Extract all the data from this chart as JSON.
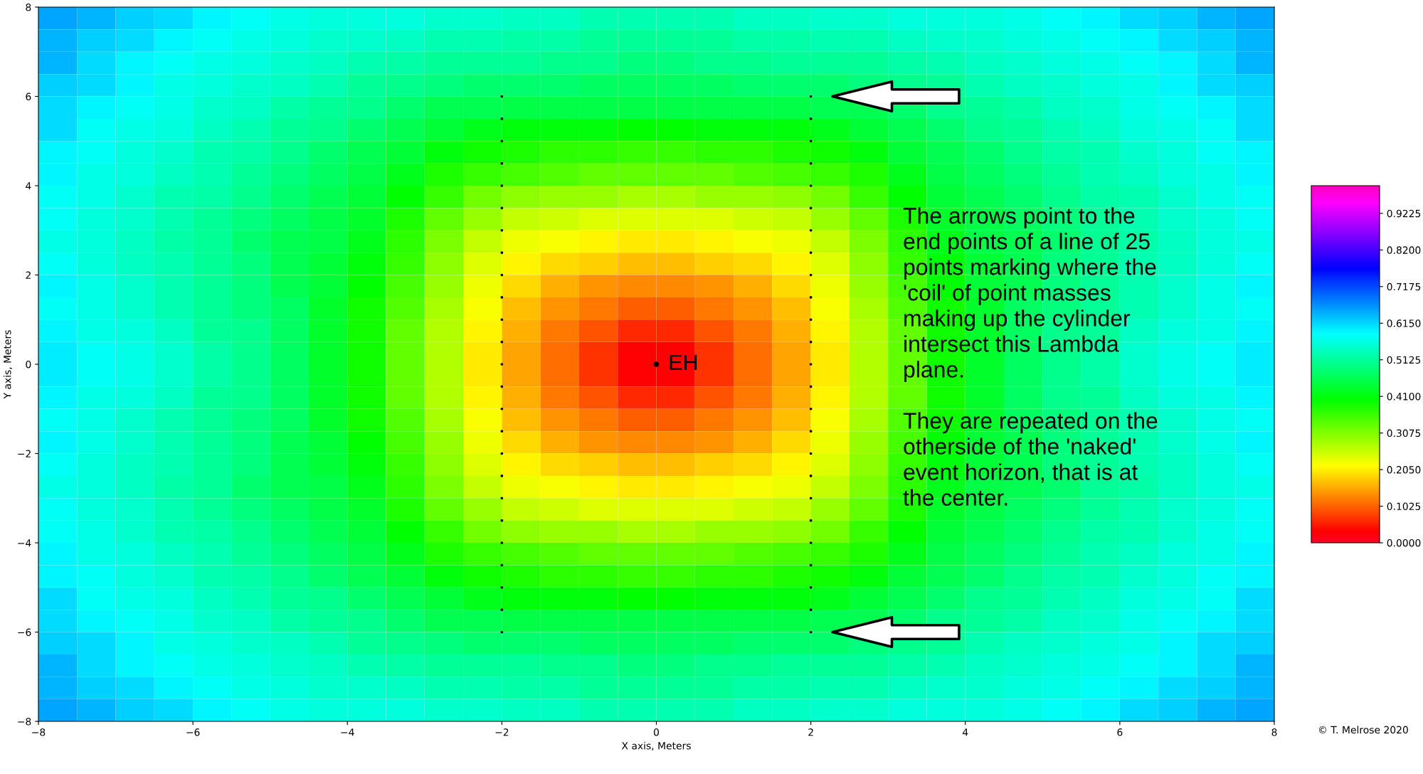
{
  "chart_data": [
    {
      "type": "heatmap",
      "categories": [
        null,
        null,
        null,
        null,
        null,
        null,
        null,
        null,
        null,
        null,
        null,
        null,
        null,
        null,
        null,
        null,
        null,
        null,
        null,
        null,
        null,
        null,
        null,
        null,
        null,
        null,
        null,
        null,
        null,
        null,
        null,
        null
      ],
      "y_categories": [
        null,
        null,
        null,
        null,
        null,
        null,
        null,
        null,
        null,
        null,
        null,
        null,
        null,
        null,
        null,
        null,
        null,
        null,
        null,
        null,
        null,
        null,
        null,
        null,
        null,
        null,
        null,
        null,
        null,
        null,
        null,
        null
      ],
      "clim": [
        0,
        1.0
      ],
      "cticks": [
        {
          "value": 0,
          "label": "0.0000"
        },
        0.1025,
        {
          "value": 0.205,
          "label": "0.2050"
        },
        0.3075,
        {
          "value": 0.41,
          "label": "0.4100"
        },
        0.5125,
        {
          "value": 0.615,
          "label": "0.6150"
        },
        0.7175,
        {
          "value": 0.82,
          "label": "0.8200"
        },
        0.9225
      ],
      "cells": [
        [
          0.65,
          0.64,
          0.62,
          0.61,
          0.59,
          0.58,
          0.57,
          0.56,
          0.56,
          0.56,
          0.55,
          0.55,
          0.54,
          0.54,
          0.53,
          0.53,
          0.53,
          0.53,
          0.54,
          0.54,
          0.55,
          0.55,
          0.56,
          0.56,
          0.56,
          0.57,
          0.58,
          0.59,
          0.61,
          0.62,
          0.64,
          0.65
        ],
        [
          0.64,
          0.62,
          0.61,
          0.59,
          0.58,
          0.57,
          0.56,
          0.55,
          0.55,
          0.54,
          0.53,
          0.53,
          0.52,
          0.52,
          0.51,
          0.51,
          0.51,
          0.51,
          0.52,
          0.52,
          0.53,
          0.53,
          0.54,
          0.55,
          0.55,
          0.56,
          0.57,
          0.58,
          0.59,
          0.61,
          0.62,
          0.64
        ],
        [
          0.64,
          0.61,
          0.59,
          0.58,
          0.57,
          0.56,
          0.55,
          0.54,
          0.53,
          0.52,
          0.51,
          0.51,
          0.51,
          0.5,
          0.5,
          0.49,
          0.49,
          0.5,
          0.5,
          0.51,
          0.51,
          0.51,
          0.52,
          0.53,
          0.54,
          0.55,
          0.56,
          0.57,
          0.58,
          0.59,
          0.61,
          0.64
        ],
        [
          0.62,
          0.61,
          0.59,
          0.57,
          0.56,
          0.55,
          0.54,
          0.53,
          0.51,
          0.5,
          0.49,
          0.48,
          0.48,
          0.48,
          0.47,
          0.47,
          0.47,
          0.47,
          0.48,
          0.48,
          0.48,
          0.49,
          0.5,
          0.51,
          0.53,
          0.54,
          0.55,
          0.56,
          0.57,
          0.59,
          0.61,
          0.62
        ],
        [
          0.61,
          0.59,
          0.58,
          0.57,
          0.55,
          0.54,
          0.52,
          0.51,
          0.5,
          0.48,
          0.46,
          0.46,
          0.45,
          0.45,
          0.45,
          0.45,
          0.45,
          0.45,
          0.45,
          0.45,
          0.46,
          0.46,
          0.48,
          0.5,
          0.51,
          0.52,
          0.54,
          0.55,
          0.57,
          0.58,
          0.59,
          0.61
        ],
        [
          0.61,
          0.58,
          0.57,
          0.56,
          0.54,
          0.53,
          0.51,
          0.5,
          0.48,
          0.46,
          0.44,
          0.42,
          0.41,
          0.41,
          0.41,
          0.4,
          0.4,
          0.41,
          0.41,
          0.41,
          0.42,
          0.44,
          0.46,
          0.48,
          0.5,
          0.51,
          0.53,
          0.54,
          0.56,
          0.57,
          0.58,
          0.61
        ],
        [
          0.59,
          0.58,
          0.56,
          0.55,
          0.53,
          0.52,
          0.5,
          0.48,
          0.46,
          0.44,
          0.41,
          0.39,
          0.38,
          0.37,
          0.37,
          0.36,
          0.36,
          0.37,
          0.37,
          0.38,
          0.39,
          0.41,
          0.44,
          0.46,
          0.48,
          0.5,
          0.52,
          0.53,
          0.55,
          0.56,
          0.58,
          0.59
        ],
        [
          0.59,
          0.57,
          0.56,
          0.54,
          0.53,
          0.51,
          0.49,
          0.47,
          0.45,
          0.42,
          0.38,
          0.36,
          0.35,
          0.34,
          0.33,
          0.33,
          0.33,
          0.33,
          0.34,
          0.35,
          0.36,
          0.38,
          0.42,
          0.45,
          0.47,
          0.49,
          0.51,
          0.53,
          0.54,
          0.56,
          0.57,
          0.59
        ],
        [
          0.58,
          0.57,
          0.55,
          0.53,
          0.52,
          0.5,
          0.48,
          0.46,
          0.44,
          0.4,
          0.36,
          0.32,
          0.3,
          0.29,
          0.29,
          0.28,
          0.28,
          0.29,
          0.29,
          0.3,
          0.32,
          0.36,
          0.4,
          0.44,
          0.46,
          0.48,
          0.5,
          0.52,
          0.53,
          0.55,
          0.57,
          0.58
        ],
        [
          0.58,
          0.56,
          0.55,
          0.53,
          0.51,
          0.49,
          0.47,
          0.45,
          0.43,
          0.38,
          0.33,
          0.29,
          0.26,
          0.25,
          0.24,
          0.24,
          0.24,
          0.24,
          0.25,
          0.26,
          0.29,
          0.33,
          0.38,
          0.43,
          0.45,
          0.47,
          0.49,
          0.51,
          0.53,
          0.55,
          0.56,
          0.58
        ],
        [
          0.57,
          0.56,
          0.54,
          0.52,
          0.51,
          0.48,
          0.46,
          0.45,
          0.42,
          0.37,
          0.31,
          0.26,
          0.23,
          0.22,
          0.21,
          0.2,
          0.2,
          0.21,
          0.22,
          0.23,
          0.26,
          0.31,
          0.37,
          0.42,
          0.45,
          0.46,
          0.48,
          0.51,
          0.52,
          0.54,
          0.56,
          0.57
        ],
        [
          0.58,
          0.56,
          0.54,
          0.53,
          0.51,
          0.49,
          0.46,
          0.44,
          0.41,
          0.36,
          0.3,
          0.24,
          0.21,
          0.19,
          0.18,
          0.17,
          0.17,
          0.18,
          0.19,
          0.21,
          0.24,
          0.3,
          0.36,
          0.41,
          0.44,
          0.46,
          0.49,
          0.51,
          0.53,
          0.54,
          0.56,
          0.58
        ],
        [
          0.59,
          0.57,
          0.55,
          0.53,
          0.51,
          0.49,
          0.46,
          0.44,
          0.4,
          0.35,
          0.29,
          0.23,
          0.19,
          0.16,
          0.14,
          0.13,
          0.13,
          0.14,
          0.16,
          0.19,
          0.23,
          0.29,
          0.35,
          0.4,
          0.44,
          0.46,
          0.49,
          0.51,
          0.53,
          0.55,
          0.57,
          0.59
        ],
        [
          0.58,
          0.57,
          0.55,
          0.53,
          0.51,
          0.49,
          0.47,
          0.43,
          0.39,
          0.34,
          0.28,
          0.22,
          0.17,
          0.14,
          0.12,
          0.1,
          0.1,
          0.12,
          0.14,
          0.17,
          0.22,
          0.28,
          0.34,
          0.39,
          0.43,
          0.47,
          0.49,
          0.51,
          0.53,
          0.55,
          0.57,
          0.58
        ],
        [
          0.59,
          0.57,
          0.56,
          0.54,
          0.51,
          0.5,
          0.47,
          0.43,
          0.39,
          0.33,
          0.27,
          0.21,
          0.16,
          0.12,
          0.09,
          0.06,
          0.06,
          0.09,
          0.12,
          0.16,
          0.21,
          0.27,
          0.33,
          0.39,
          0.43,
          0.47,
          0.5,
          0.51,
          0.54,
          0.56,
          0.57,
          0.59
        ],
        [
          0.6,
          0.58,
          0.57,
          0.55,
          0.52,
          0.5,
          0.47,
          0.43,
          0.39,
          0.33,
          0.27,
          0.2,
          0.15,
          0.11,
          0.07,
          0.03,
          0.03,
          0.07,
          0.11,
          0.15,
          0.2,
          0.27,
          0.33,
          0.39,
          0.43,
          0.47,
          0.5,
          0.52,
          0.55,
          0.57,
          0.58,
          0.6
        ],
        [
          0.6,
          0.58,
          0.57,
          0.55,
          0.52,
          0.5,
          0.47,
          0.43,
          0.39,
          0.33,
          0.27,
          0.2,
          0.15,
          0.11,
          0.07,
          0.03,
          0.03,
          0.07,
          0.11,
          0.15,
          0.2,
          0.27,
          0.33,
          0.39,
          0.43,
          0.47,
          0.5,
          0.52,
          0.55,
          0.57,
          0.58,
          0.6
        ],
        [
          0.59,
          0.57,
          0.56,
          0.54,
          0.51,
          0.5,
          0.47,
          0.43,
          0.39,
          0.33,
          0.27,
          0.21,
          0.16,
          0.12,
          0.09,
          0.06,
          0.06,
          0.09,
          0.12,
          0.16,
          0.21,
          0.27,
          0.33,
          0.39,
          0.43,
          0.47,
          0.5,
          0.51,
          0.54,
          0.56,
          0.57,
          0.59
        ],
        [
          0.58,
          0.57,
          0.55,
          0.53,
          0.51,
          0.49,
          0.47,
          0.43,
          0.39,
          0.34,
          0.28,
          0.22,
          0.17,
          0.14,
          0.12,
          0.1,
          0.1,
          0.12,
          0.14,
          0.17,
          0.22,
          0.28,
          0.34,
          0.39,
          0.43,
          0.47,
          0.49,
          0.51,
          0.53,
          0.55,
          0.57,
          0.58
        ],
        [
          0.59,
          0.57,
          0.55,
          0.53,
          0.51,
          0.49,
          0.46,
          0.44,
          0.4,
          0.35,
          0.29,
          0.23,
          0.19,
          0.16,
          0.14,
          0.13,
          0.13,
          0.14,
          0.16,
          0.19,
          0.23,
          0.29,
          0.35,
          0.4,
          0.44,
          0.46,
          0.49,
          0.51,
          0.53,
          0.55,
          0.57,
          0.59
        ],
        [
          0.58,
          0.56,
          0.54,
          0.53,
          0.51,
          0.49,
          0.46,
          0.44,
          0.41,
          0.36,
          0.3,
          0.24,
          0.21,
          0.19,
          0.18,
          0.17,
          0.17,
          0.18,
          0.19,
          0.21,
          0.24,
          0.3,
          0.36,
          0.41,
          0.44,
          0.46,
          0.49,
          0.51,
          0.53,
          0.54,
          0.56,
          0.58
        ],
        [
          0.57,
          0.56,
          0.54,
          0.52,
          0.51,
          0.48,
          0.46,
          0.45,
          0.42,
          0.37,
          0.31,
          0.26,
          0.23,
          0.22,
          0.21,
          0.2,
          0.2,
          0.21,
          0.22,
          0.23,
          0.26,
          0.31,
          0.37,
          0.42,
          0.45,
          0.46,
          0.48,
          0.51,
          0.52,
          0.54,
          0.56,
          0.57
        ],
        [
          0.58,
          0.56,
          0.55,
          0.53,
          0.51,
          0.49,
          0.47,
          0.45,
          0.43,
          0.38,
          0.33,
          0.29,
          0.26,
          0.25,
          0.24,
          0.24,
          0.24,
          0.24,
          0.25,
          0.26,
          0.29,
          0.33,
          0.38,
          0.43,
          0.45,
          0.47,
          0.49,
          0.51,
          0.53,
          0.55,
          0.56,
          0.58
        ],
        [
          0.58,
          0.57,
          0.55,
          0.53,
          0.52,
          0.5,
          0.48,
          0.46,
          0.44,
          0.4,
          0.36,
          0.32,
          0.3,
          0.29,
          0.29,
          0.28,
          0.28,
          0.29,
          0.29,
          0.3,
          0.32,
          0.36,
          0.4,
          0.44,
          0.46,
          0.48,
          0.5,
          0.52,
          0.53,
          0.55,
          0.57,
          0.58
        ],
        [
          0.59,
          0.57,
          0.56,
          0.54,
          0.53,
          0.51,
          0.49,
          0.47,
          0.45,
          0.42,
          0.38,
          0.36,
          0.35,
          0.34,
          0.33,
          0.33,
          0.33,
          0.33,
          0.34,
          0.35,
          0.36,
          0.38,
          0.42,
          0.45,
          0.47,
          0.49,
          0.51,
          0.53,
          0.54,
          0.56,
          0.57,
          0.59
        ],
        [
          0.59,
          0.58,
          0.56,
          0.55,
          0.53,
          0.52,
          0.5,
          0.48,
          0.46,
          0.44,
          0.41,
          0.39,
          0.38,
          0.37,
          0.37,
          0.36,
          0.36,
          0.37,
          0.37,
          0.38,
          0.39,
          0.41,
          0.44,
          0.46,
          0.48,
          0.5,
          0.52,
          0.53,
          0.55,
          0.56,
          0.58,
          0.59
        ],
        [
          0.61,
          0.58,
          0.57,
          0.56,
          0.54,
          0.53,
          0.51,
          0.5,
          0.48,
          0.46,
          0.44,
          0.42,
          0.41,
          0.41,
          0.41,
          0.4,
          0.4,
          0.41,
          0.41,
          0.41,
          0.42,
          0.44,
          0.46,
          0.48,
          0.5,
          0.51,
          0.53,
          0.54,
          0.56,
          0.57,
          0.58,
          0.61
        ],
        [
          0.61,
          0.59,
          0.58,
          0.57,
          0.55,
          0.54,
          0.52,
          0.51,
          0.5,
          0.48,
          0.46,
          0.46,
          0.45,
          0.45,
          0.45,
          0.45,
          0.45,
          0.45,
          0.45,
          0.45,
          0.46,
          0.46,
          0.48,
          0.5,
          0.51,
          0.52,
          0.54,
          0.55,
          0.57,
          0.58,
          0.59,
          0.61
        ],
        [
          0.62,
          0.61,
          0.59,
          0.57,
          0.56,
          0.55,
          0.54,
          0.53,
          0.51,
          0.5,
          0.49,
          0.48,
          0.48,
          0.48,
          0.47,
          0.47,
          0.47,
          0.47,
          0.48,
          0.48,
          0.48,
          0.49,
          0.5,
          0.51,
          0.53,
          0.54,
          0.55,
          0.56,
          0.57,
          0.59,
          0.61,
          0.62
        ],
        [
          0.64,
          0.61,
          0.59,
          0.58,
          0.57,
          0.56,
          0.55,
          0.54,
          0.53,
          0.52,
          0.51,
          0.51,
          0.51,
          0.5,
          0.5,
          0.49,
          0.49,
          0.5,
          0.5,
          0.51,
          0.51,
          0.51,
          0.52,
          0.53,
          0.54,
          0.55,
          0.56,
          0.57,
          0.58,
          0.59,
          0.61,
          0.64
        ],
        [
          0.64,
          0.62,
          0.61,
          0.59,
          0.58,
          0.57,
          0.56,
          0.55,
          0.55,
          0.54,
          0.53,
          0.53,
          0.52,
          0.52,
          0.51,
          0.51,
          0.51,
          0.51,
          0.52,
          0.52,
          0.53,
          0.53,
          0.54,
          0.55,
          0.55,
          0.56,
          0.57,
          0.58,
          0.59,
          0.61,
          0.62,
          0.64
        ],
        [
          0.65,
          0.64,
          0.62,
          0.61,
          0.59,
          0.58,
          0.57,
          0.56,
          0.56,
          0.56,
          0.55,
          0.55,
          0.54,
          0.54,
          0.53,
          0.53,
          0.53,
          0.53,
          0.54,
          0.54,
          0.55,
          0.55,
          0.56,
          0.56,
          0.56,
          0.57,
          0.58,
          0.59,
          0.61,
          0.62,
          0.64,
          0.65
        ]
      ]
    },
    {
      "type": "scatter",
      "xlabel": "X axis, Meters",
      "ylabel": "Y axis, Meters",
      "xlim": [
        -8,
        8
      ],
      "ylim": [
        -8,
        8
      ],
      "xticks": [
        {
          "value": -8,
          "label": "−8"
        },
        {
          "value": -6,
          "label": "−6"
        },
        {
          "value": -4,
          "label": "−4"
        },
        {
          "value": -2,
          "label": "−2"
        },
        0,
        2,
        4,
        6,
        8
      ],
      "yticks": [
        {
          "value": -8,
          "label": "−8"
        },
        {
          "value": -6,
          "label": "−6"
        },
        {
          "value": -4,
          "label": "−4"
        },
        {
          "value": -2,
          "label": "−2"
        },
        0,
        2,
        4,
        6,
        8
      ],
      "marker": "circle",
      "series": [
        {
          "type": "scatter",
          "color": "#000000",
          "x": [
            -2,
            -2,
            -2,
            -2,
            -2,
            -2,
            -2,
            -2,
            -2,
            -2,
            -2,
            -2,
            -2,
            -2,
            -2,
            -2,
            -2,
            -2,
            -2,
            -2,
            -2,
            -2,
            -2,
            -2,
            -2,
            2,
            2,
            2,
            2,
            2,
            2,
            2,
            2,
            2,
            2,
            2,
            2,
            2,
            2,
            2,
            2,
            2,
            2,
            2,
            2,
            2,
            2,
            2,
            2,
            2
          ],
          "values": [
            -6,
            -5.5,
            -5,
            -4.5,
            -4,
            -3.5,
            -3,
            -2.5,
            -2,
            -1.5,
            -1,
            -0.5,
            0,
            0.5,
            1,
            1.5,
            2,
            2.5,
            3,
            3.5,
            4,
            4.5,
            5,
            5.5,
            6,
            -6,
            -5.5,
            -5,
            -4.5,
            -4,
            -3.5,
            -3,
            -2.5,
            -2,
            -1.5,
            -1,
            -0.5,
            0,
            0.5,
            1,
            1.5,
            2,
            2.5,
            3,
            3.5,
            4,
            4.5,
            5,
            5.5,
            6
          ]
        },
        {
          "type": "scatter",
          "color": "#000000",
          "x": [
            0
          ],
          "values": [
            0
          ]
        }
      ],
      "annotations": [
        "The arrows point to the\nend points of a line of 25\npoints marking where the\n'coil' of point masses\nmaking up the cylinder\nintersect this Lambda\nplane.\n\nThey are repeated on the\notherside of the 'naked'\nevent horizon, that is at\nthe center.",
        {
          "text": "EH",
          "x": 0,
          "y": 0
        },
        "© T. Melrose 2020"
      ]
    }
  ]
}
